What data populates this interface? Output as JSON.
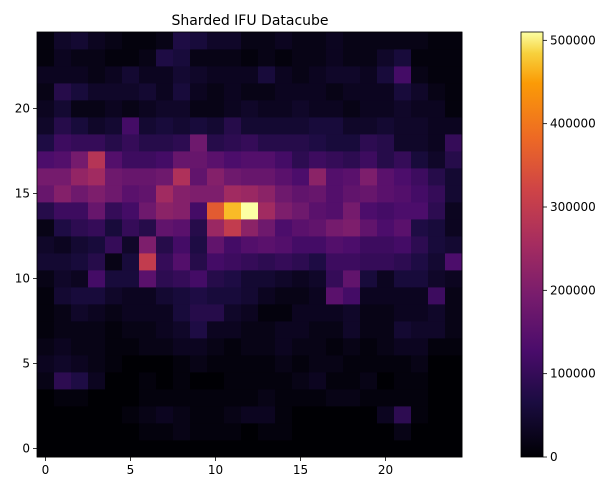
{
  "chart_data": {
    "type": "heatmap",
    "title": "Sharded IFU Datacube",
    "xlabel": "",
    "ylabel": "",
    "colormap": "inferno",
    "origin": "lower",
    "xlim": [
      -0.5,
      24.5
    ],
    "ylim": [
      -0.5,
      24.5
    ],
    "x_ticks": [
      0,
      5,
      10,
      15,
      20
    ],
    "y_ticks": [
      0,
      5,
      10,
      15,
      20
    ],
    "colorbar": {
      "vmin": 0,
      "vmax": 510000,
      "ticks": [
        0,
        100000,
        200000,
        300000,
        400000,
        500000
      ],
      "tick_labels": [
        "0",
        "100000",
        "200000",
        "300000",
        "400000",
        "500000"
      ]
    },
    "matrix": [
      [
        0,
        0,
        0,
        0,
        0,
        0,
        0,
        0,
        0,
        0,
        0,
        0,
        0,
        0,
        0,
        0,
        0,
        0,
        0,
        0,
        0,
        0,
        0,
        0,
        0
      ],
      [
        0,
        0,
        0,
        0,
        0,
        0,
        10000,
        10000,
        20000,
        10000,
        10000,
        10000,
        0,
        10000,
        10000,
        0,
        0,
        0,
        0,
        0,
        0,
        20000,
        0,
        0,
        0
      ],
      [
        0,
        0,
        0,
        0,
        0,
        10000,
        20000,
        30000,
        20000,
        10000,
        10000,
        20000,
        30000,
        30000,
        10000,
        0,
        0,
        0,
        0,
        0,
        30000,
        90000,
        10000,
        0,
        0
      ],
      [
        0,
        10000,
        10000,
        0,
        0,
        0,
        10000,
        10000,
        10000,
        10000,
        10000,
        10000,
        10000,
        20000,
        10000,
        10000,
        10000,
        20000,
        20000,
        10000,
        10000,
        10000,
        10000,
        0,
        0
      ],
      [
        20000,
        90000,
        70000,
        30000,
        0,
        0,
        10000,
        0,
        10000,
        0,
        0,
        10000,
        10000,
        10000,
        10000,
        20000,
        30000,
        10000,
        10000,
        20000,
        0,
        10000,
        10000,
        0,
        0
      ],
      [
        30000,
        40000,
        30000,
        20000,
        10000,
        0,
        0,
        0,
        10000,
        20000,
        10000,
        10000,
        10000,
        10000,
        20000,
        10000,
        20000,
        20000,
        10000,
        10000,
        10000,
        10000,
        20000,
        0,
        0
      ],
      [
        20000,
        30000,
        20000,
        20000,
        10000,
        10000,
        20000,
        20000,
        30000,
        30000,
        20000,
        10000,
        20000,
        20000,
        30000,
        20000,
        20000,
        10000,
        20000,
        10000,
        20000,
        30000,
        30000,
        10000,
        10000
      ],
      [
        10000,
        20000,
        20000,
        20000,
        10000,
        20000,
        20000,
        30000,
        40000,
        70000,
        30000,
        30000,
        20000,
        20000,
        30000,
        30000,
        20000,
        20000,
        40000,
        20000,
        20000,
        50000,
        40000,
        40000,
        20000
      ],
      [
        10000,
        20000,
        40000,
        30000,
        20000,
        30000,
        30000,
        30000,
        60000,
        80000,
        80000,
        40000,
        30000,
        10000,
        10000,
        30000,
        30000,
        30000,
        40000,
        20000,
        20000,
        30000,
        30000,
        40000,
        20000
      ],
      [
        10000,
        50000,
        60000,
        60000,
        40000,
        30000,
        30000,
        50000,
        60000,
        70000,
        60000,
        60000,
        50000,
        30000,
        20000,
        20000,
        30000,
        150000,
        120000,
        30000,
        30000,
        30000,
        30000,
        110000,
        20000
      ],
      [
        20000,
        40000,
        30000,
        120000,
        60000,
        60000,
        150000,
        90000,
        100000,
        120000,
        80000,
        70000,
        50000,
        50000,
        40000,
        30000,
        40000,
        100000,
        160000,
        60000,
        30000,
        60000,
        60000,
        40000,
        30000
      ],
      [
        50000,
        50000,
        60000,
        80000,
        20000,
        60000,
        300000,
        100000,
        140000,
        80000,
        120000,
        110000,
        100000,
        90000,
        100000,
        90000,
        70000,
        110000,
        110000,
        100000,
        100000,
        90000,
        70000,
        50000,
        130000
      ],
      [
        40000,
        30000,
        50000,
        60000,
        100000,
        40000,
        200000,
        80000,
        120000,
        70000,
        160000,
        120000,
        140000,
        150000,
        140000,
        120000,
        120000,
        140000,
        130000,
        110000,
        110000,
        120000,
        90000,
        60000,
        50000
      ],
      [
        20000,
        70000,
        90000,
        100000,
        60000,
        100000,
        80000,
        160000,
        150000,
        80000,
        240000,
        300000,
        220000,
        180000,
        130000,
        150000,
        160000,
        190000,
        200000,
        160000,
        130000,
        150000,
        70000,
        60000,
        30000
      ],
      [
        80000,
        110000,
        110000,
        170000,
        100000,
        120000,
        180000,
        220000,
        210000,
        120000,
        360000,
        470000,
        510000,
        250000,
        200000,
        180000,
        150000,
        140000,
        190000,
        130000,
        120000,
        130000,
        130000,
        90000,
        30000
      ],
      [
        170000,
        210000,
        180000,
        200000,
        180000,
        150000,
        160000,
        250000,
        210000,
        200000,
        200000,
        250000,
        240000,
        220000,
        180000,
        160000,
        170000,
        140000,
        160000,
        170000,
        150000,
        140000,
        120000,
        100000,
        50000
      ],
      [
        190000,
        190000,
        230000,
        250000,
        180000,
        170000,
        170000,
        180000,
        270000,
        160000,
        210000,
        180000,
        170000,
        170000,
        150000,
        130000,
        220000,
        140000,
        150000,
        200000,
        150000,
        130000,
        110000,
        80000,
        50000
      ],
      [
        130000,
        140000,
        190000,
        280000,
        140000,
        110000,
        110000,
        120000,
        170000,
        170000,
        150000,
        130000,
        140000,
        140000,
        120000,
        90000,
        110000,
        100000,
        90000,
        110000,
        80000,
        100000,
        60000,
        40000,
        80000
      ],
      [
        70000,
        110000,
        100000,
        100000,
        80000,
        100000,
        80000,
        80000,
        90000,
        180000,
        80000,
        90000,
        100000,
        80000,
        80000,
        80000,
        70000,
        60000,
        60000,
        90000,
        80000,
        40000,
        40000,
        30000,
        100000
      ],
      [
        40000,
        80000,
        60000,
        40000,
        50000,
        120000,
        50000,
        60000,
        50000,
        60000,
        50000,
        80000,
        50000,
        50000,
        50000,
        50000,
        60000,
        60000,
        40000,
        40000,
        50000,
        40000,
        40000,
        30000,
        30000
      ],
      [
        30000,
        50000,
        20000,
        20000,
        30000,
        20000,
        30000,
        40000,
        40000,
        20000,
        20000,
        30000,
        40000,
        30000,
        30000,
        40000,
        30000,
        30000,
        20000,
        30000,
        30000,
        40000,
        30000,
        30000,
        10000
      ],
      [
        20000,
        80000,
        60000,
        40000,
        40000,
        40000,
        50000,
        30000,
        60000,
        30000,
        20000,
        30000,
        20000,
        20000,
        30000,
        30000,
        30000,
        20000,
        30000,
        30000,
        30000,
        60000,
        40000,
        20000,
        10000
      ],
      [
        30000,
        30000,
        30000,
        20000,
        30000,
        50000,
        30000,
        30000,
        50000,
        40000,
        30000,
        30000,
        30000,
        60000,
        30000,
        20000,
        30000,
        40000,
        40000,
        30000,
        60000,
        120000,
        20000,
        10000,
        10000
      ],
      [
        10000,
        30000,
        20000,
        20000,
        10000,
        10000,
        20000,
        70000,
        60000,
        20000,
        20000,
        20000,
        10000,
        20000,
        10000,
        20000,
        20000,
        30000,
        20000,
        20000,
        40000,
        60000,
        10000,
        10000,
        10000
      ],
      [
        10000,
        40000,
        50000,
        30000,
        20000,
        10000,
        10000,
        20000,
        70000,
        60000,
        40000,
        40000,
        20000,
        20000,
        30000,
        20000,
        20000,
        30000,
        20000,
        20000,
        20000,
        20000,
        20000,
        10000,
        10000
      ]
    ]
  }
}
